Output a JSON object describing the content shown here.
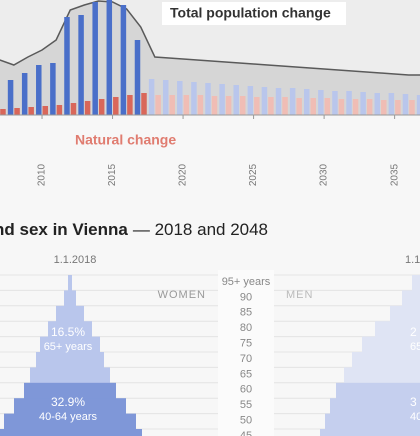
{
  "chart_data": [
    {
      "type": "bar",
      "x": [
        2007,
        2008,
        2009,
        2010,
        2011,
        2012,
        2013,
        2014,
        2015,
        2016,
        2017,
        2018,
        2019,
        2020,
        2021,
        2022,
        2023,
        2024,
        2025,
        2026,
        2027,
        2028,
        2029,
        2030,
        2031,
        2032,
        2033,
        2034,
        2035,
        2036,
        2037
      ],
      "xlim": [
        2007.02,
        2036.8
      ],
      "xticks": [
        2010,
        2015,
        2020,
        2025,
        2030,
        2035
      ],
      "ylim": [
        0,
        115
      ],
      "annotations": [
        "Total population change",
        "Natural change"
      ],
      "series": [
        {
          "type": "area",
          "color": "#d6d6d6",
          "line_color": "#5a5a5a",
          "values": [
            55,
            50,
            58,
            65,
            75,
            105,
            110,
            114,
            113,
            106,
            88,
            58,
            57,
            56,
            55,
            54,
            53,
            52,
            51,
            50,
            49,
            48,
            47,
            46,
            45,
            44,
            43,
            42,
            41,
            40,
            40
          ]
        },
        {
          "type": "bar",
          "colors": [
            "#4a6fc9",
            "#4a6fc9",
            "#4a6fc9",
            "#4a6fc9",
            "#4a6fc9",
            "#4a6fc9",
            "#4a6fc9",
            "#4a6fc9",
            "#4a6fc9",
            "#4a6fc9",
            "#4a6fc9",
            "#b9c6ec",
            "#b9c6ec",
            "#b9c6ec",
            "#b9c6ec",
            "#b9c6ec",
            "#b9c6ec",
            "#b9c6ec",
            "#b9c6ec",
            "#b9c6ec",
            "#b9c6ec",
            "#b9c6ec",
            "#b9c6ec",
            "#b9c6ec",
            "#b9c6ec",
            "#b9c6ec",
            "#b9c6ec",
            "#b9c6ec",
            "#b9c6ec",
            "#b9c6ec",
            "#b9c6ec"
          ],
          "values": [
            45,
            35,
            42,
            50,
            52,
            98,
            100,
            113,
            115,
            110,
            75,
            36,
            35,
            34,
            33,
            32,
            31,
            30,
            29,
            28,
            27,
            27,
            26,
            25,
            24,
            24,
            23,
            22,
            22,
            21,
            20
          ]
        },
        {
          "type": "bar",
          "colors": [
            "#d9675a",
            "#d9675a",
            "#d9675a",
            "#d9675a",
            "#d9675a",
            "#d9675a",
            "#d9675a",
            "#d9675a",
            "#d9675a",
            "#d9675a",
            "#d9675a",
            "#f0bdb5",
            "#f0bdb5",
            "#f0bdb5",
            "#f0bdb5",
            "#f0bdb5",
            "#f0bdb5",
            "#f0bdb5",
            "#f0bdb5",
            "#f0bdb5",
            "#f0bdb5",
            "#f0bdb5",
            "#f0bdb5",
            "#f0bdb5",
            "#f0bdb5",
            "#f0bdb5",
            "#f0bdb5",
            "#f0bdb5",
            "#f0bdb5",
            "#f0bdb5",
            "#f0bdb5"
          ],
          "values": [
            6,
            7,
            8,
            9,
            10,
            12,
            14,
            16,
            18,
            20,
            22,
            20,
            20,
            20,
            20,
            19,
            19,
            19,
            18,
            18,
            18,
            17,
            17,
            17,
            16,
            16,
            16,
            15,
            15,
            15,
            15
          ]
        }
      ]
    },
    {
      "type": "pyramid",
      "title": "nd sex in Vienna",
      "subtitle": "— 2018 and 2048",
      "left_label": "WOMEN",
      "right_label": "MEN",
      "categories": [
        "95+ years",
        "90",
        "85",
        "80",
        "75",
        "70",
        "65",
        "60",
        "55",
        "50",
        "45"
      ],
      "series": [
        {
          "name": "1.1.2018",
          "colors": [
            "#b9c6ec",
            "#b9c6ec",
            "#b9c6ec",
            "#b9c6ec",
            "#b9c6ec",
            "#b9c6ec",
            "#b9c6ec",
            "#7f97d8",
            "#7f97d8",
            "#7f97d8",
            "#7f97d8"
          ],
          "values": [
            2,
            6,
            14,
            22,
            30,
            34,
            40,
            46,
            56,
            66,
            72
          ],
          "group_labels": [
            "16.5%",
            "65+ years",
            "32.9%",
            "40-64 years"
          ]
        },
        {
          "name": "1.1.",
          "colors": [
            "#dfe4f4",
            "#dfe4f4",
            "#dfe4f4",
            "#dfe4f4",
            "#dfe4f4",
            "#dfe4f4",
            "#dfe4f4",
            "#c5cfee",
            "#c5cfee",
            "#c5cfee",
            "#c5cfee"
          ],
          "values": [
            8,
            18,
            30,
            45,
            58,
            68,
            76,
            84,
            90,
            95,
            100
          ],
          "group_labels": [
            "2",
            "65+",
            "3",
            "40-6"
          ]
        }
      ]
    }
  ]
}
